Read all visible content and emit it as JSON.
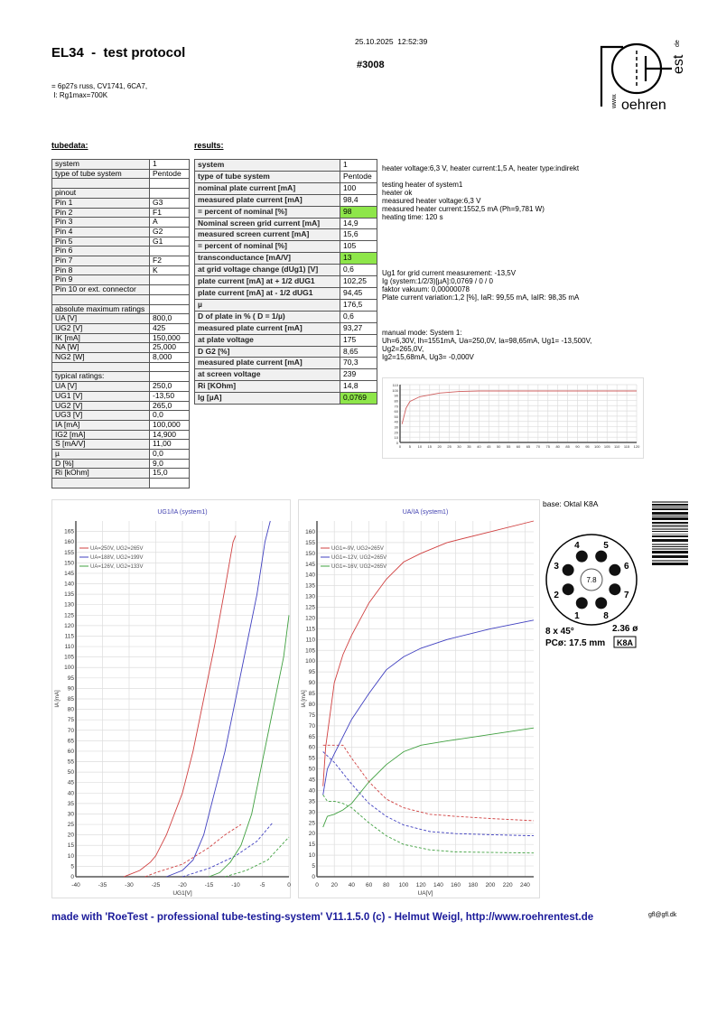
{
  "header": {
    "title": "EL34  -  test protocol",
    "datetime": "25.10.2025  12:52:39",
    "serial": "#3008",
    "subtitle_1": "= 6p27s russ, CV1741, 6CA7,",
    "subtitle_2": " I: Rg1max=700K"
  },
  "logo": {
    "text": "RoehrenTest www. .de"
  },
  "tubedata": {
    "heading": "tubedata:",
    "rows": [
      [
        "system",
        "1"
      ],
      [
        "type of tube system",
        "Pentode"
      ],
      [
        "",
        ""
      ],
      [
        "pinout",
        ""
      ],
      [
        "Pin 1",
        "G3"
      ],
      [
        "Pin 2",
        "F1"
      ],
      [
        "Pin 3",
        "A"
      ],
      [
        "Pin 4",
        "G2"
      ],
      [
        "Pin 5",
        "G1"
      ],
      [
        "Pin 6",
        ""
      ],
      [
        "Pin 7",
        "F2"
      ],
      [
        "Pin 8",
        "K"
      ],
      [
        "Pin 9",
        ""
      ],
      [
        "Pin 10 or ext. connector",
        ""
      ],
      [
        "",
        ""
      ],
      [
        "absolute maximum ratings",
        ""
      ],
      [
        "UA [V]",
        "800,0"
      ],
      [
        "UG2 [V]",
        "425"
      ],
      [
        "IK [mA]",
        "150,000"
      ],
      [
        "NA [W]",
        "25,000"
      ],
      [
        "NG2 [W]",
        "8,000"
      ],
      [
        "",
        ""
      ],
      [
        "typical ratings:",
        ""
      ],
      [
        "UA [V]",
        "250,0"
      ],
      [
        "UG1 [V]",
        "-13,50"
      ],
      [
        "UG2 [V]",
        "265,0"
      ],
      [
        "UG3 [V]",
        "0,0"
      ],
      [
        "IA [mA]",
        "100,000"
      ],
      [
        "IG2 [mA]",
        "14,900"
      ],
      [
        "S [mA/V]",
        "11,00"
      ],
      [
        "µ",
        "0,0"
      ],
      [
        "D [%]",
        "9,0"
      ],
      [
        "Ri [kOhm]",
        "15,0"
      ],
      [
        "",
        ""
      ]
    ]
  },
  "results": {
    "heading": "results:",
    "highlight_color": "#8ee64a",
    "rows": [
      [
        "system",
        "1",
        false
      ],
      [
        "type of tube system",
        "Pentode",
        false
      ],
      [
        "nominal plate current [mA]",
        "100",
        false
      ],
      [
        "measured plate current [mA]",
        "98,4",
        false
      ],
      [
        "= percent of nominal [%]",
        "98",
        true
      ],
      [
        "Nominal screen grid current [mA]",
        "14,9",
        false
      ],
      [
        "measured screen current [mA]",
        "15,6",
        false
      ],
      [
        "= percent of nominal [%]",
        "105",
        false
      ],
      [
        "transconductance [mA/V]",
        "13",
        true
      ],
      [
        "at grid voltage change (dUg1) [V]",
        "0,6",
        false
      ],
      [
        "plate current [mA] at + 1/2 dUG1",
        "102,25",
        false
      ],
      [
        "plate current [mA] at - 1/2 dUG1",
        "94,45",
        false
      ],
      [
        "µ",
        "176,5",
        false
      ],
      [
        "D of plate in % ( D = 1/µ)",
        "0,6",
        false
      ],
      [
        "measured plate current [mA]",
        "93,27",
        false
      ],
      [
        "at plate voltage",
        "175",
        false
      ],
      [
        "D G2 [%]",
        "8,65",
        false
      ],
      [
        "measured plate current [mA]",
        "70,3",
        false
      ],
      [
        "at screen voltage",
        "239",
        false
      ],
      [
        "Ri [KOhm]",
        "14,8",
        false
      ],
      [
        "Ig [µA]",
        "0,0769",
        true
      ]
    ]
  },
  "info": {
    "heater": "heater voltage:6,3 V, heater current:1,5 A, heater type:indirekt",
    "heater_test": "testing heater of system1\nheater ok\nmeasured heater voltage:6,3 V\nmeasured heater current:1552,5 mA (Ph=9,781 W)\nheating time: 120 s",
    "grid": "Ug1 for grid current measurement: -13,5V\nIg (system:1/2/3)[µA]:0,0769 / 0 / 0\nfaktor vakuum: 0,00000078\nPlate current variation:1,2 [%], IaR: 99,55 mA, IaIR: 98,35 mA",
    "manual": "manual mode: System 1:\nUh=6,30V, Ih=1551mA, Ua=250,0V, Ia=98,65mA, Ug1= -13,500V,\nUg2=265,0V,\nIg2=15,68mA, Ug3= -0,000V"
  },
  "base": {
    "label": "base: Oktal K8A",
    "center": "7.8",
    "angle": "8 x 45°",
    "pin_dia": "2.36 ø",
    "pc": "PCø: 17.5 mm",
    "code": "K8A",
    "pins": [
      "1",
      "2",
      "3",
      "4",
      "5",
      "6",
      "7",
      "8"
    ]
  },
  "footer": {
    "text": "made with 'RoeTest - professional tube-testing-system' V11.1.5.0 (c) - Helmut Weigl, http://www.roehrentest.de",
    "email": "gfl@gfl.dk",
    "color": "#1a1a9a"
  },
  "chart_data": [
    {
      "type": "line",
      "title": "UG1/IA (system1)",
      "xlabel": "UG1[V]",
      "ylabel": "IA [mA]",
      "xlim": [
        -40,
        0
      ],
      "ylim": [
        0,
        170
      ],
      "xticks": [
        -40,
        -35,
        -30,
        -25,
        -20,
        -15,
        -10,
        -5,
        0
      ],
      "ystep": 5,
      "ytop": 165,
      "grid": true,
      "legend": "top-left",
      "series": [
        {
          "name": "UA=250V, UG2=265V",
          "color": "#d04040",
          "dash": false,
          "x": [
            -31,
            -30,
            -28,
            -26,
            -25,
            -23,
            -20,
            -18,
            -16,
            -14,
            -12,
            -10.5,
            -10
          ],
          "y": [
            0,
            1,
            3,
            7,
            10,
            20,
            40,
            60,
            85,
            110,
            138,
            160,
            163
          ]
        },
        {
          "name": "",
          "color": "#d04040",
          "dash": true,
          "x": [
            -27,
            -25,
            -20,
            -15,
            -12,
            -9
          ],
          "y": [
            0,
            2,
            6,
            14,
            20,
            25
          ]
        },
        {
          "name": "UA=188V, UG2=199V",
          "color": "#4040c0",
          "dash": false,
          "x": [
            -23,
            -20,
            -18,
            -16,
            -14,
            -12,
            -10,
            -8,
            -6,
            -4.5,
            -3.5
          ],
          "y": [
            0,
            3,
            8,
            20,
            40,
            60,
            85,
            110,
            135,
            160,
            170
          ]
        },
        {
          "name": "",
          "color": "#4040c0",
          "dash": true,
          "x": [
            -20,
            -15,
            -10,
            -6,
            -3
          ],
          "y": [
            0,
            4,
            10,
            17,
            26
          ]
        },
        {
          "name": "UA=126V, UG2=133V",
          "color": "#40a040",
          "dash": false,
          "x": [
            -15,
            -13,
            -11,
            -9,
            -7,
            -5,
            -3,
            -1,
            0
          ],
          "y": [
            0,
            2,
            7,
            15,
            30,
            55,
            80,
            105,
            125
          ]
        },
        {
          "name": "",
          "color": "#40a040",
          "dash": true,
          "x": [
            -12,
            -8,
            -4,
            0
          ],
          "y": [
            0,
            3,
            8,
            19
          ]
        }
      ]
    },
    {
      "type": "line",
      "title": "UA/IA (system1)",
      "xlabel": "UA[V]",
      "ylabel": "IA [mA]",
      "xlim": [
        0,
        250
      ],
      "ylim": [
        0,
        165
      ],
      "xticks": [
        0,
        20,
        40,
        60,
        80,
        100,
        120,
        140,
        160,
        180,
        200,
        220,
        240
      ],
      "ystep": 5,
      "ytop": 160,
      "grid": true,
      "legend": "top-left",
      "series": [
        {
          "name": "UG1=-9V, UG2=265V",
          "color": "#d04040",
          "dash": false,
          "x": [
            7,
            10,
            15,
            20,
            30,
            40,
            60,
            80,
            100,
            120,
            150,
            200,
            250
          ],
          "y": [
            42,
            60,
            75,
            90,
            103,
            112,
            127,
            138,
            146,
            150,
            155,
            160,
            165
          ]
        },
        {
          "name": "",
          "color": "#d04040",
          "dash": true,
          "x": [
            7,
            20,
            30,
            40,
            60,
            80,
            100,
            130,
            160,
            200,
            250
          ],
          "y": [
            61,
            61,
            61,
            55,
            44,
            36,
            32,
            29,
            28,
            27,
            26
          ]
        },
        {
          "name": "UG1=-12V, UG2=265V",
          "color": "#4040c0",
          "dash": false,
          "x": [
            7,
            12,
            20,
            30,
            40,
            60,
            80,
            100,
            120,
            150,
            200,
            250
          ],
          "y": [
            38,
            50,
            57,
            65,
            73,
            85,
            96,
            102,
            106,
            110,
            115,
            119
          ]
        },
        {
          "name": "",
          "color": "#4040c0",
          "dash": true,
          "x": [
            7,
            20,
            40,
            60,
            80,
            100,
            130,
            160,
            200,
            250
          ],
          "y": [
            58,
            53,
            43,
            34,
            28,
            24,
            21,
            20,
            19.5,
            19
          ]
        },
        {
          "name": "UG1=-16V, UG2=265V",
          "color": "#40a040",
          "dash": false,
          "x": [
            7,
            12,
            20,
            30,
            40,
            60,
            80,
            100,
            120,
            150,
            200,
            250
          ],
          "y": [
            23,
            28,
            29,
            31,
            34,
            44,
            52,
            58,
            61,
            63,
            66,
            69
          ]
        },
        {
          "name": "",
          "color": "#40a040",
          "dash": true,
          "x": [
            7,
            12,
            20,
            30,
            40,
            60,
            80,
            100,
            130,
            160,
            250
          ],
          "y": [
            38,
            35,
            35,
            34,
            32,
            25,
            19,
            15,
            12.5,
            11.5,
            11
          ]
        }
      ]
    },
    {
      "type": "line",
      "title": "",
      "xlim": [
        0,
        120
      ],
      "ylim": [
        0,
        110
      ],
      "xticks": [
        0,
        5,
        10,
        15,
        20,
        25,
        30,
        35,
        40,
        45,
        50,
        55,
        60,
        65,
        70,
        75,
        80,
        85,
        90,
        95,
        100,
        105,
        110,
        115,
        120
      ],
      "ystep": 10,
      "ytop": 110,
      "grid": true,
      "legend": "right",
      "series": [
        {
          "name": "",
          "color": "#d06060",
          "dash": false,
          "x": [
            1,
            3,
            5,
            10,
            20,
            30,
            40,
            60,
            120
          ],
          "y": [
            35,
            65,
            78,
            87,
            94,
            97,
            98,
            98,
            98
          ]
        }
      ]
    }
  ]
}
